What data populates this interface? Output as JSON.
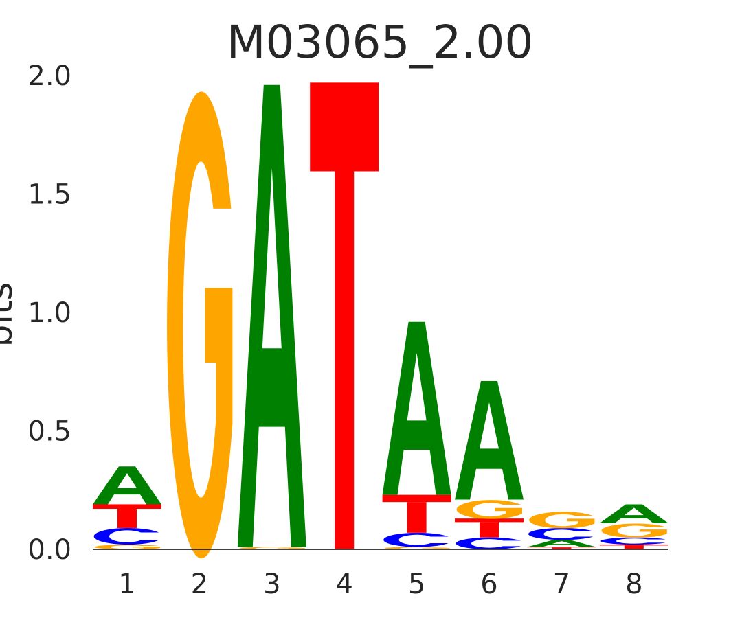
{
  "chart_data": {
    "type": "sequence-logo",
    "title": "M03065_2.00",
    "ylabel": "bits",
    "ylim": [
      0,
      2.0
    ],
    "yticks": [
      "0.0",
      "0.5",
      "1.0",
      "1.5",
      "2.0"
    ],
    "xticks": [
      "1",
      "2",
      "3",
      "4",
      "5",
      "6",
      "7",
      "8"
    ],
    "grid": false,
    "colors": {
      "A": "#008000",
      "C": "#0000ff",
      "G": "#ffa500",
      "T": "#ff0000"
    },
    "positions": [
      {
        "pos": "1",
        "letters": [
          {
            "base": "G",
            "height": 0.02
          },
          {
            "base": "C",
            "height": 0.07
          },
          {
            "base": "T",
            "height": 0.1
          },
          {
            "base": "A",
            "height": 0.16
          }
        ]
      },
      {
        "pos": "2",
        "letters": [
          {
            "base": "G",
            "height": 1.97
          }
        ]
      },
      {
        "pos": "3",
        "letters": [
          {
            "base": "G",
            "height": 0.01
          },
          {
            "base": "A",
            "height": 1.95
          }
        ]
      },
      {
        "pos": "4",
        "letters": [
          {
            "base": "T",
            "height": 1.97
          }
        ]
      },
      {
        "pos": "5",
        "letters": [
          {
            "base": "G",
            "height": 0.01
          },
          {
            "base": "C",
            "height": 0.06
          },
          {
            "base": "T",
            "height": 0.16
          },
          {
            "base": "A",
            "height": 0.73
          }
        ]
      },
      {
        "pos": "6",
        "letters": [
          {
            "base": "C",
            "height": 0.05
          },
          {
            "base": "T",
            "height": 0.08
          },
          {
            "base": "G",
            "height": 0.08
          },
          {
            "base": "A",
            "height": 0.5
          }
        ]
      },
      {
        "pos": "7",
        "letters": [
          {
            "base": "T",
            "height": 0.01
          },
          {
            "base": "A",
            "height": 0.03
          },
          {
            "base": "C",
            "height": 0.05
          },
          {
            "base": "G",
            "height": 0.07
          }
        ]
      },
      {
        "pos": "8",
        "letters": [
          {
            "base": "T",
            "height": 0.02
          },
          {
            "base": "C",
            "height": 0.03
          },
          {
            "base": "G",
            "height": 0.06
          },
          {
            "base": "A",
            "height": 0.08
          }
        ]
      }
    ]
  }
}
